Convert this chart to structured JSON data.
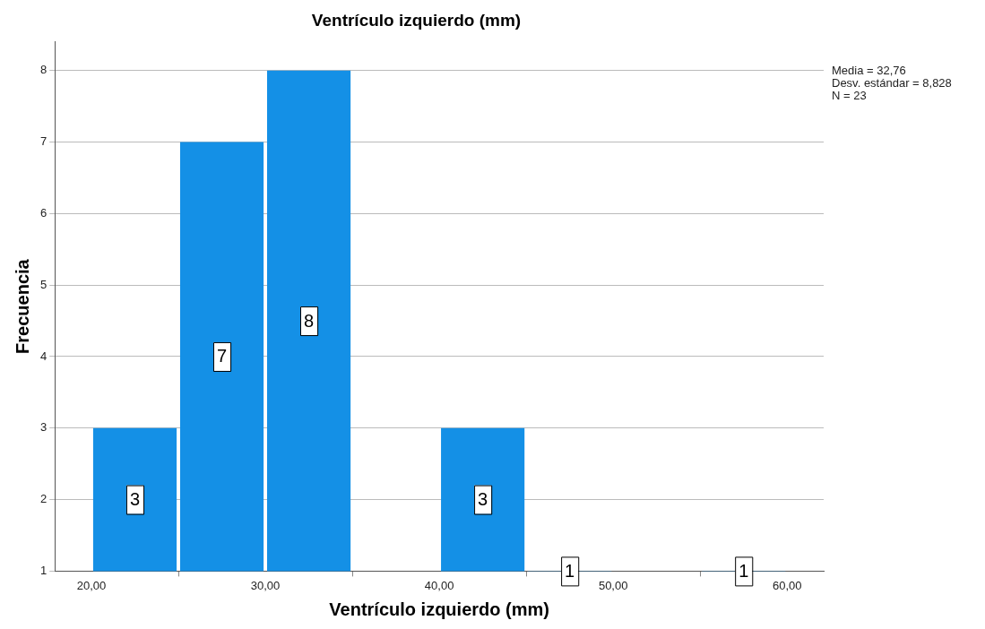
{
  "chart_data": {
    "type": "histogram",
    "title": "Ventrículo izquierdo (mm)",
    "xlabel": "Ventrículo izquierdo (mm)",
    "ylabel": "Frecuencia",
    "bins": [
      20,
      25,
      30,
      35,
      40,
      45,
      50,
      55,
      60
    ],
    "values": [
      3,
      7,
      8,
      null,
      3,
      1,
      null,
      1
    ],
    "value_labels": [
      "3",
      "7",
      "8",
      null,
      "3",
      "1",
      null,
      "1"
    ],
    "color": "#1490e6",
    "xlim": [
      17.9,
      62.1
    ],
    "xticks": [
      {
        "value": 20,
        "label": "20,00"
      },
      {
        "value": 30,
        "label": "30,00"
      },
      {
        "value": 40,
        "label": "40,00"
      },
      {
        "value": 50,
        "label": "50,00"
      },
      {
        "value": 60,
        "label": "60,00"
      }
    ],
    "ylim": [
      1,
      8.4
    ],
    "yticks": [
      1,
      2,
      3,
      4,
      5,
      6,
      7,
      8
    ],
    "grid": "y",
    "annotations": [
      "Media = 32,76",
      "Desv. estándar = 8,828",
      "N = 23"
    ]
  }
}
